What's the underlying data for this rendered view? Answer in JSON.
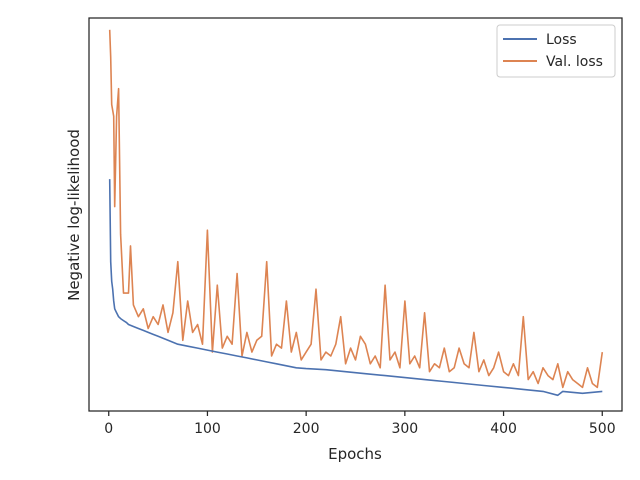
{
  "chart_data": {
    "type": "line",
    "xlabel": "Epochs",
    "ylabel": "Negative log-likelihood",
    "xlim": [
      -20,
      520
    ],
    "ylim": [
      0.0,
      1.0
    ],
    "y_ticks_shown": false,
    "x_ticks": [
      0,
      100,
      200,
      300,
      400,
      500
    ],
    "grid": false,
    "legend_position": "top-right",
    "series": [
      {
        "name": "Loss",
        "color": "#4c72b0",
        "x": [
          1,
          2,
          3,
          4,
          5,
          6,
          8,
          10,
          12,
          15,
          18,
          20,
          25,
          30,
          35,
          40,
          45,
          50,
          60,
          70,
          80,
          90,
          100,
          110,
          120,
          130,
          140,
          150,
          160,
          170,
          180,
          190,
          200,
          220,
          240,
          260,
          280,
          300,
          320,
          340,
          360,
          380,
          400,
          420,
          440,
          455,
          460,
          480,
          500
        ],
        "y": [
          0.59,
          0.38,
          0.33,
          0.31,
          0.28,
          0.26,
          0.25,
          0.24,
          0.235,
          0.23,
          0.225,
          0.22,
          0.215,
          0.21,
          0.205,
          0.2,
          0.195,
          0.19,
          0.18,
          0.17,
          0.165,
          0.16,
          0.155,
          0.15,
          0.145,
          0.14,
          0.135,
          0.13,
          0.125,
          0.12,
          0.115,
          0.11,
          0.108,
          0.105,
          0.1,
          0.095,
          0.09,
          0.085,
          0.08,
          0.075,
          0.07,
          0.065,
          0.06,
          0.055,
          0.05,
          0.04,
          0.05,
          0.045,
          0.05
        ]
      },
      {
        "name": "Val. loss",
        "color": "#dd8452",
        "x": [
          1,
          2,
          3,
          5,
          6,
          8,
          10,
          12,
          15,
          20,
          22,
          25,
          30,
          35,
          40,
          45,
          50,
          55,
          60,
          65,
          70,
          75,
          80,
          85,
          90,
          95,
          100,
          105,
          110,
          115,
          120,
          125,
          130,
          135,
          140,
          145,
          150,
          155,
          160,
          165,
          170,
          175,
          180,
          185,
          190,
          195,
          200,
          205,
          210,
          215,
          220,
          225,
          230,
          235,
          240,
          245,
          250,
          255,
          260,
          265,
          270,
          275,
          280,
          285,
          290,
          295,
          300,
          305,
          310,
          315,
          320,
          325,
          330,
          335,
          340,
          345,
          350,
          355,
          360,
          365,
          370,
          375,
          380,
          385,
          390,
          395,
          400,
          405,
          410,
          415,
          420,
          425,
          430,
          435,
          440,
          445,
          450,
          455,
          460,
          465,
          470,
          475,
          480,
          485,
          490,
          495,
          500
        ],
        "y": [
          0.97,
          0.9,
          0.78,
          0.75,
          0.52,
          0.75,
          0.82,
          0.45,
          0.3,
          0.3,
          0.42,
          0.27,
          0.24,
          0.26,
          0.21,
          0.24,
          0.22,
          0.27,
          0.2,
          0.25,
          0.38,
          0.18,
          0.28,
          0.2,
          0.22,
          0.17,
          0.46,
          0.15,
          0.32,
          0.16,
          0.19,
          0.17,
          0.35,
          0.14,
          0.2,
          0.15,
          0.18,
          0.19,
          0.38,
          0.14,
          0.17,
          0.16,
          0.28,
          0.15,
          0.2,
          0.13,
          0.15,
          0.17,
          0.31,
          0.13,
          0.15,
          0.14,
          0.17,
          0.24,
          0.12,
          0.16,
          0.13,
          0.19,
          0.17,
          0.12,
          0.14,
          0.11,
          0.32,
          0.13,
          0.15,
          0.11,
          0.28,
          0.12,
          0.14,
          0.11,
          0.25,
          0.1,
          0.12,
          0.11,
          0.16,
          0.1,
          0.11,
          0.16,
          0.12,
          0.11,
          0.2,
          0.1,
          0.13,
          0.09,
          0.11,
          0.15,
          0.1,
          0.09,
          0.12,
          0.09,
          0.24,
          0.08,
          0.1,
          0.07,
          0.11,
          0.09,
          0.08,
          0.12,
          0.06,
          0.1,
          0.08,
          0.07,
          0.06,
          0.11,
          0.07,
          0.06,
          0.15
        ]
      }
    ]
  }
}
